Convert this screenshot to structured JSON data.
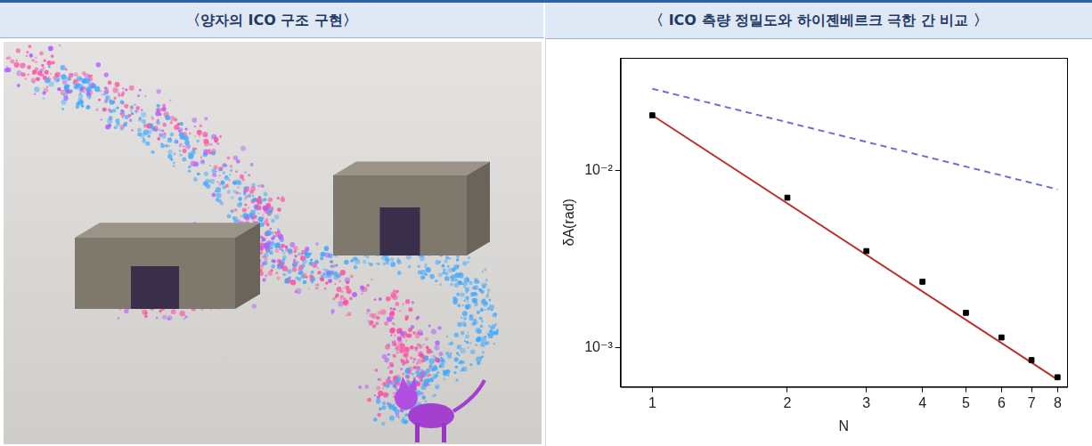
{
  "panels": [
    {
      "title": "〈양자의 ICO 구조 구현〉"
    },
    {
      "title": "〈 ICO 측량 정밀도와 하이젠베르크 극한 간 비교 〉"
    }
  ],
  "chart_data": {
    "type": "scatter",
    "x_label": "N",
    "y_label": "δA(rad)",
    "log": true,
    "grid": false,
    "xlim": [
      0.85,
      8.4
    ],
    "ylim": [
      0.0006,
      0.043
    ],
    "xticks": [
      1,
      2,
      3,
      4,
      5,
      6,
      7,
      8
    ],
    "yticks": [
      {
        "value": 0.001,
        "label": "10⁻³"
      },
      {
        "value": 0.01,
        "label": "10⁻²"
      }
    ],
    "series": [
      {
        "type": "scatter",
        "color": "#000000",
        "marker": "square",
        "x": [
          1,
          2,
          3,
          4,
          5,
          6,
          7,
          8
        ],
        "values": [
          0.0204,
          0.007,
          0.0035,
          0.00235,
          0.00157,
          0.00114,
          0.00085,
          0.00068
        ]
      },
      {
        "type": "line",
        "color": "#b8322a",
        "line_style": "solid",
        "x": [
          1,
          8
        ],
        "values": [
          0.0204,
          0.00066
        ]
      },
      {
        "type": "line",
        "color": "#6b6fd4",
        "line_style": "dashed",
        "x": [
          1,
          8
        ],
        "values": [
          0.0288,
          0.0078
        ]
      }
    ]
  }
}
